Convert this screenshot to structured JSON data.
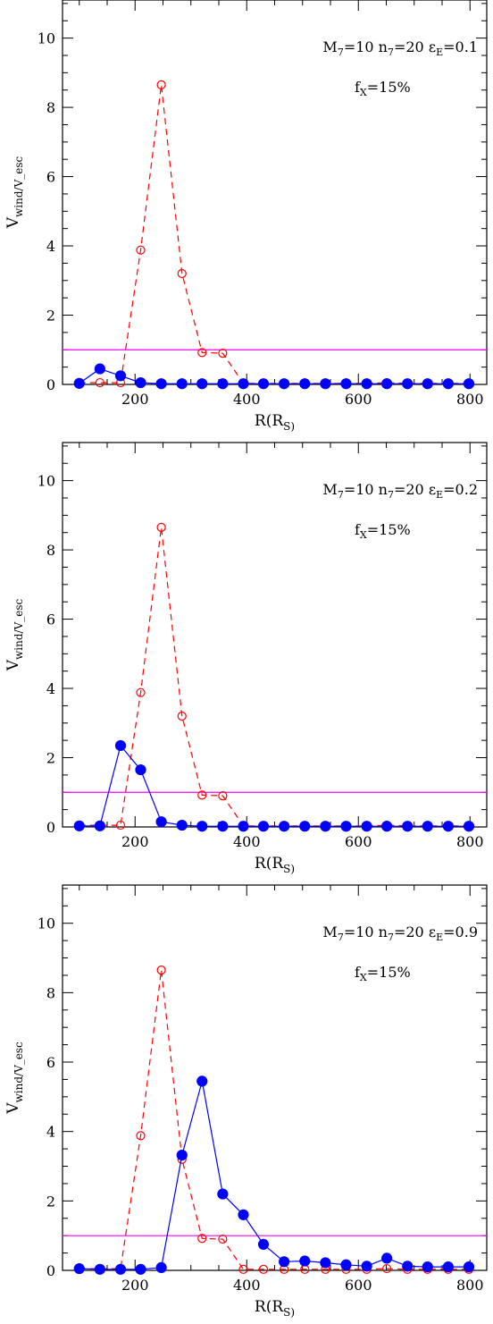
{
  "chart_data": [
    {
      "type": "line",
      "xlabel": "R(R_S)",
      "ylabel": "V_wind/V_esc",
      "xlim": [
        70,
        830
      ],
      "ylim": [
        0,
        11.1
      ],
      "xticks": [
        200,
        400,
        600,
        800
      ],
      "yticks": [
        0,
        2,
        4,
        6,
        8,
        10
      ],
      "annotations": [
        "M_7=10  n_7=20  ε_E=0.1",
        "f_X=15%"
      ],
      "reference_line": {
        "y": 1,
        "color": "#ff00ff"
      },
      "series": [
        {
          "color": "#ff0000",
          "style": "dashed",
          "marker": "open-circle",
          "x": [
            100,
            137,
            174,
            210,
            247,
            284,
            320,
            357,
            394,
            430,
            467,
            504,
            541,
            578,
            615,
            651,
            688,
            724,
            761,
            798
          ],
          "y": [
            0.05,
            0.05,
            0.05,
            3.88,
            8.65,
            3.2,
            0.92,
            0.9,
            0.03,
            0.03,
            0.03,
            0.03,
            0.03,
            0.03,
            0.03,
            0.05,
            0.03,
            0.03,
            0.03,
            0.03
          ]
        },
        {
          "color": "#0000ff",
          "style": "solid",
          "marker": "filled-circle",
          "x": [
            100,
            137,
            174,
            210,
            247,
            284,
            320,
            357,
            394,
            430,
            467,
            504,
            541,
            578,
            615,
            651,
            688,
            724,
            761,
            798
          ],
          "y": [
            0.03,
            0.45,
            0.25,
            0.05,
            0.02,
            0.02,
            0.02,
            0.02,
            0.02,
            0.02,
            0.02,
            0.02,
            0.02,
            0.02,
            0.02,
            0.02,
            0.02,
            0.02,
            0.02,
            0.02
          ]
        }
      ]
    },
    {
      "type": "line",
      "xlabel": "R(R_S)",
      "ylabel": "V_wind/V_esc",
      "xlim": [
        70,
        830
      ],
      "ylim": [
        0,
        11.1
      ],
      "xticks": [
        200,
        400,
        600,
        800
      ],
      "yticks": [
        0,
        2,
        4,
        6,
        8,
        10
      ],
      "annotations": [
        "M_7=10  n_7=20  ε_E=0.2",
        "f_X=15%"
      ],
      "reference_line": {
        "y": 1,
        "color": "#ff00ff"
      },
      "series": [
        {
          "color": "#ff0000",
          "style": "dashed",
          "marker": "open-circle",
          "x": [
            100,
            137,
            174,
            210,
            247,
            284,
            320,
            357,
            394,
            430,
            467,
            504,
            541,
            578,
            615,
            651,
            688,
            724,
            761,
            798
          ],
          "y": [
            0.05,
            0.05,
            0.05,
            3.88,
            8.65,
            3.2,
            0.92,
            0.9,
            0.03,
            0.03,
            0.03,
            0.03,
            0.03,
            0.03,
            0.03,
            0.05,
            0.03,
            0.03,
            0.03,
            0.03
          ]
        },
        {
          "color": "#0000ff",
          "style": "solid",
          "marker": "filled-circle",
          "x": [
            100,
            137,
            174,
            210,
            247,
            284,
            320,
            357,
            394,
            430,
            467,
            504,
            541,
            578,
            615,
            651,
            688,
            724,
            761,
            798
          ],
          "y": [
            0.03,
            0.03,
            2.35,
            1.65,
            0.15,
            0.05,
            0.02,
            0.02,
            0.02,
            0.02,
            0.02,
            0.02,
            0.02,
            0.02,
            0.02,
            0.02,
            0.02,
            0.02,
            0.02,
            0.02
          ]
        }
      ]
    },
    {
      "type": "line",
      "xlabel": "R(R_S)",
      "ylabel": "V_wind/V_esc",
      "xlim": [
        70,
        830
      ],
      "ylim": [
        0,
        11.1
      ],
      "xticks": [
        200,
        400,
        600,
        800
      ],
      "yticks": [
        0,
        2,
        4,
        6,
        8,
        10
      ],
      "annotations": [
        "M_7=10  n_7=20  ε_E=0.9",
        "f_X=15%"
      ],
      "reference_line": {
        "y": 1,
        "color": "#ff00ff"
      },
      "series": [
        {
          "color": "#ff0000",
          "style": "dashed",
          "marker": "open-circle",
          "x": [
            100,
            137,
            174,
            210,
            247,
            284,
            320,
            357,
            394,
            430,
            467,
            504,
            541,
            578,
            615,
            651,
            688,
            724,
            761,
            798
          ],
          "y": [
            0.05,
            0.05,
            0.05,
            3.88,
            8.65,
            3.2,
            0.92,
            0.9,
            0.03,
            0.03,
            0.03,
            0.03,
            0.03,
            0.03,
            0.03,
            0.05,
            0.03,
            0.03,
            0.03,
            0.03
          ]
        },
        {
          "color": "#0000ff",
          "style": "solid",
          "marker": "filled-circle",
          "x": [
            100,
            137,
            174,
            210,
            247,
            284,
            320,
            357,
            394,
            430,
            467,
            504,
            541,
            578,
            615,
            651,
            688,
            724,
            761,
            798
          ],
          "y": [
            0.05,
            0.03,
            0.03,
            0.03,
            0.08,
            3.32,
            5.45,
            2.2,
            1.6,
            0.75,
            0.25,
            0.27,
            0.22,
            0.16,
            0.12,
            0.35,
            0.12,
            0.1,
            0.1,
            0.1
          ]
        }
      ]
    }
  ]
}
